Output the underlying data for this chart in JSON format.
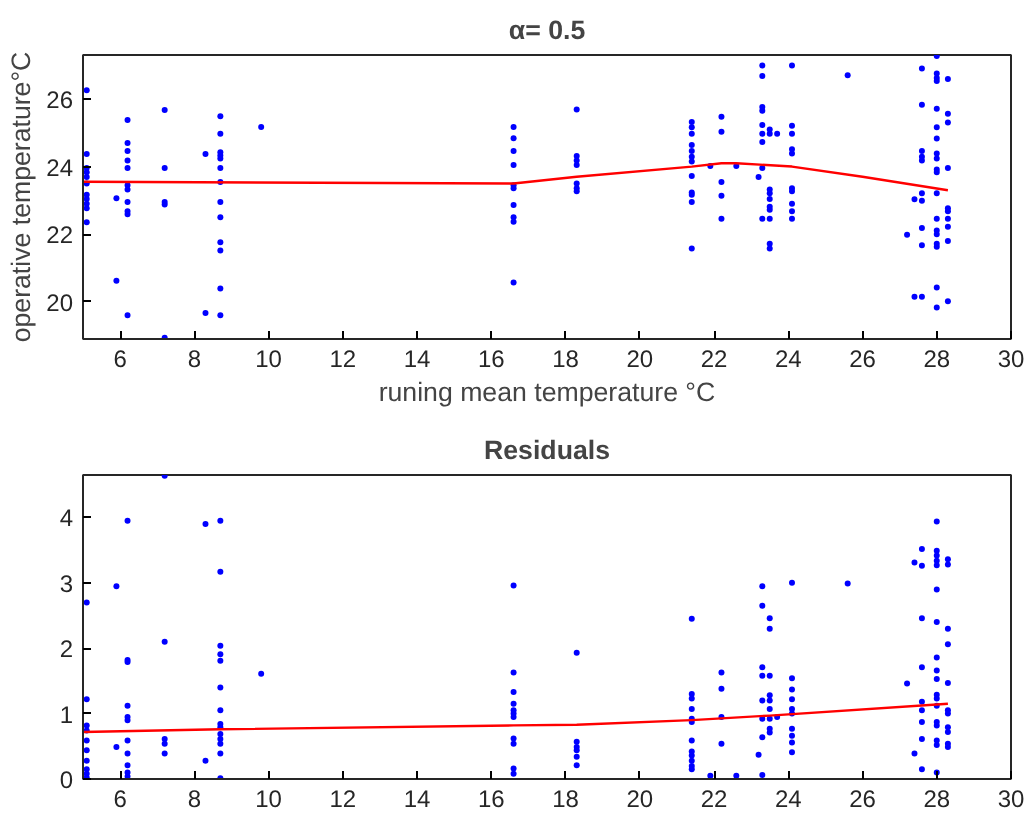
{
  "chart_data": [
    {
      "type": "scatter",
      "title": "α= 0.5",
      "xlabel": "runing mean temperature °C",
      "ylabel": "operative temperature°C",
      "xlim": [
        5,
        30
      ],
      "ylim": [
        18.9,
        27.3
      ],
      "xticks": [
        6,
        8,
        10,
        12,
        14,
        16,
        18,
        20,
        22,
        24,
        26,
        28,
        30
      ],
      "yticks": [
        20,
        22,
        24,
        26
      ],
      "grid": false,
      "marker": "circle",
      "series": [
        {
          "color": "#0000ff",
          "x": [
            5.1,
            5.1,
            5.1,
            5.1,
            5.1,
            5.1,
            5.1,
            5.1,
            5.1,
            5.1,
            5.1,
            5.9,
            5.9,
            6.2,
            6.2,
            6.2,
            6.2,
            6.2,
            6.2,
            6.2,
            6.2,
            6.2,
            6.2,
            6.2,
            7.2,
            7.2,
            7.2,
            7.2,
            7.2,
            8.3,
            8.3,
            8.7,
            8.7,
            8.7,
            8.7,
            8.7,
            8.7,
            8.7,
            8.7,
            8.7,
            8.7,
            8.7,
            8.7,
            8.7,
            9.8,
            16.6,
            16.6,
            16.6,
            16.6,
            16.6,
            16.6,
            16.6,
            16.6,
            16.6,
            16.6,
            18.3,
            18.3,
            18.3,
            18.3,
            18.3,
            18.3,
            18.3,
            21.4,
            21.4,
            21.4,
            21.4,
            21.4,
            21.4,
            21.4,
            21.4,
            21.4,
            21.4,
            21.4,
            21.4,
            21.9,
            22.2,
            22.2,
            22.2,
            22.2,
            22.2,
            22.6,
            23.2,
            23.3,
            23.3,
            23.3,
            23.3,
            23.3,
            23.3,
            23.3,
            23.3,
            23.3,
            23.5,
            23.5,
            23.5,
            23.5,
            23.5,
            23.5,
            23.5,
            23.5,
            23.5,
            23.5,
            23.7,
            24.1,
            24.1,
            24.1,
            24.1,
            24.1,
            24.1,
            24.1,
            24.1,
            24.1,
            24.1,
            25.6,
            27.2,
            27.4,
            27.4,
            27.6,
            27.6,
            27.6,
            27.6,
            27.6,
            27.6,
            27.6,
            27.6,
            27.6,
            27.6,
            28,
            28,
            28,
            28,
            28,
            28,
            28,
            28,
            28,
            28,
            28,
            28,
            28,
            28,
            28,
            28,
            28,
            28,
            28,
            28.3,
            28.3,
            28.3,
            28.3,
            28.3,
            28.3,
            28.3,
            28.3,
            28.3,
            28.3
          ],
          "values": [
            26.26,
            24.37,
            23.96,
            23.83,
            23.69,
            23.5,
            23.17,
            23.04,
            22.9,
            22.77,
            22.35,
            23.06,
            20.62,
            25.38,
            24.7,
            24.46,
            24.18,
            23.96,
            23.45,
            23.32,
            22.95,
            22.68,
            22.59,
            19.6,
            25.67,
            23.96,
            22.95,
            22.88,
            18.94,
            24.37,
            19.67,
            25.49,
            24.97,
            24.42,
            24.33,
            24.24,
            23.96,
            23.54,
            22.95,
            22.5,
            21.76,
            21.52,
            20.39,
            19.6,
            25.17,
            25.17,
            24.84,
            24.46,
            24.05,
            23.45,
            23.36,
            22.86,
            22.5,
            22.37,
            20.57,
            25.69,
            24.31,
            24.18,
            24.05,
            23.5,
            23.36,
            23.27,
            25.32,
            25.16,
            24.97,
            24.64,
            24.46,
            24.29,
            24.15,
            23.72,
            23.23,
            23.17,
            22.95,
            21.58,
            24.02,
            25.47,
            25.03,
            23.54,
            23.14,
            22.46,
            24.02,
            23.69,
            26.99,
            26.68,
            25.76,
            25.65,
            25.23,
            24.97,
            24.73,
            23.96,
            22.46,
            25.1,
            24.97,
            23.32,
            23.21,
            23.04,
            22.81,
            22.72,
            22.46,
            21.72,
            21.58,
            24.97,
            26.99,
            25.21,
            24.97,
            24.51,
            24.39,
            23.36,
            23.27,
            22.9,
            22.68,
            22.46,
            26.7,
            21.98,
            23.03,
            20.15,
            26.9,
            25.83,
            24.46,
            24.29,
            24.18,
            23.21,
            22.99,
            22.18,
            21.67,
            20.15,
            27.27,
            26.75,
            26.62,
            26.53,
            25.71,
            25.16,
            24.83,
            24.39,
            24.24,
            23.91,
            23.83,
            23.21,
            22.46,
            22.11,
            22.0,
            21.72,
            21.63,
            20.42,
            19.83,
            26.59,
            25.56,
            25.3,
            23.96,
            22.77,
            22.68,
            22.46,
            22.22,
            21.8,
            20.02
          ]
        },
        {
          "type": "line",
          "color": "#ff0000",
          "marker": "none",
          "x": [
            5,
            16.6,
            18.3,
            21.4,
            22.2,
            22.6,
            24.1,
            26,
            28.3
          ],
          "values": [
            23.55,
            23.5,
            23.7,
            24.0,
            24.1,
            24.1,
            24.0,
            23.7,
            23.3
          ]
        }
      ]
    },
    {
      "type": "scatter",
      "title": "Residuals",
      "xlim": [
        5,
        30
      ],
      "ylim": [
        0,
        4.65
      ],
      "xticks": [
        6,
        8,
        10,
        12,
        14,
        16,
        18,
        20,
        22,
        24,
        26,
        28,
        30
      ],
      "yticks": [
        0,
        1,
        2,
        3,
        4
      ],
      "grid": false,
      "marker": "circle",
      "series": [
        {
          "color": "#0000ff",
          "x": [
            5.1,
            5.1,
            5.1,
            5.1,
            5.1,
            5.1,
            5.1,
            5.1,
            5.1,
            5.1,
            5.9,
            5.9,
            6.2,
            6.2,
            6.2,
            6.2,
            6.2,
            6.2,
            6.2,
            6.2,
            6.2,
            6.2,
            6.2,
            7.2,
            7.2,
            7.2,
            7.2,
            7.2,
            8.3,
            8.3,
            8.7,
            8.7,
            8.7,
            8.7,
            8.7,
            8.7,
            8.7,
            8.7,
            8.7,
            8.7,
            8.7,
            8.7,
            8.7,
            8.7,
            9.8,
            16.6,
            16.6,
            16.6,
            16.6,
            16.6,
            16.6,
            16.6,
            16.6,
            16.6,
            16.6,
            16.6,
            18.3,
            18.3,
            18.3,
            18.3,
            18.3,
            18.3,
            21.4,
            21.4,
            21.4,
            21.4,
            21.4,
            21.4,
            21.4,
            21.4,
            21.4,
            21.4,
            21.4,
            21.4,
            21.9,
            22.2,
            22.2,
            22.2,
            22.2,
            22.6,
            23.2,
            23.3,
            23.3,
            23.3,
            23.3,
            23.3,
            23.3,
            23.3,
            23.3,
            23.5,
            23.5,
            23.5,
            23.5,
            23.5,
            23.5,
            23.5,
            23.5,
            23.5,
            23.7,
            24.1,
            24.1,
            24.1,
            24.1,
            24.1,
            24.1,
            24.1,
            24.1,
            24.1,
            24.1,
            25.6,
            27.2,
            27.4,
            27.4,
            27.6,
            27.6,
            27.6,
            27.6,
            27.6,
            27.6,
            27.6,
            27.6,
            27.6,
            28,
            28,
            28,
            28,
            28,
            28,
            28,
            28,
            28,
            28,
            28,
            28,
            28,
            28,
            28,
            28,
            28,
            28,
            28.3,
            28.3,
            28.3,
            28.3,
            28.3,
            28.3,
            28.3,
            28.3,
            28.3,
            28.3,
            28.3
          ],
          "values": [
            2.7,
            1.22,
            0.82,
            0.74,
            0.59,
            0.44,
            0.28,
            0.15,
            0.08,
            0.02,
            2.95,
            0.49,
            3.95,
            1.82,
            1.79,
            1.12,
            0.95,
            0.9,
            0.59,
            0.39,
            0.21,
            0.1,
            0.04,
            4.64,
            2.1,
            0.61,
            0.54,
            0.39,
            3.9,
            0.28,
            3.95,
            3.17,
            2.04,
            1.91,
            1.81,
            1.4,
            1.05,
            0.84,
            0.79,
            0.69,
            0.61,
            0.54,
            0.39,
            0.01,
            1.61,
            2.96,
            1.63,
            1.33,
            1.15,
            1.05,
            1.0,
            0.95,
            0.62,
            0.54,
            0.16,
            0.08,
            1.93,
            0.57,
            0.49,
            0.44,
            0.34,
            0.21,
            2.45,
            1.3,
            1.23,
            1.07,
            0.92,
            0.87,
            0.59,
            0.42,
            0.36,
            0.28,
            0.2,
            0.15,
            0.05,
            1.63,
            1.38,
            0.95,
            0.54,
            0.05,
            0.37,
            2.95,
            2.65,
            1.71,
            1.58,
            1.2,
            0.92,
            0.64,
            0.06,
            2.46,
            2.3,
            1.58,
            1.28,
            1.2,
            1.07,
            0.92,
            0.77,
            0.71,
            0.95,
            3.0,
            1.54,
            1.37,
            1.22,
            1.07,
            1.0,
            0.77,
            0.66,
            0.56,
            0.41,
            2.99,
            1.46,
            3.31,
            0.39,
            3.52,
            3.26,
            2.46,
            1.71,
            1.18,
            1.05,
            0.87,
            0.61,
            0.15,
            3.94,
            3.49,
            3.42,
            3.34,
            3.27,
            2.9,
            2.4,
            1.86,
            1.66,
            1.53,
            1.29,
            1.23,
            1.12,
            0.87,
            0.82,
            0.59,
            0.52,
            0.1,
            3.36,
            3.28,
            2.3,
            2.06,
            1.47,
            1.05,
            1.0,
            0.79,
            0.72,
            0.54,
            0.49
          ]
        },
        {
          "type": "line",
          "color": "#ff0000",
          "marker": "none",
          "x": [
            5,
            8.7,
            16.6,
            18.3,
            21.4,
            23.5,
            28.3
          ],
          "values": [
            0.72,
            0.76,
            0.82,
            0.83,
            0.9,
            0.97,
            1.15
          ]
        }
      ]
    }
  ]
}
